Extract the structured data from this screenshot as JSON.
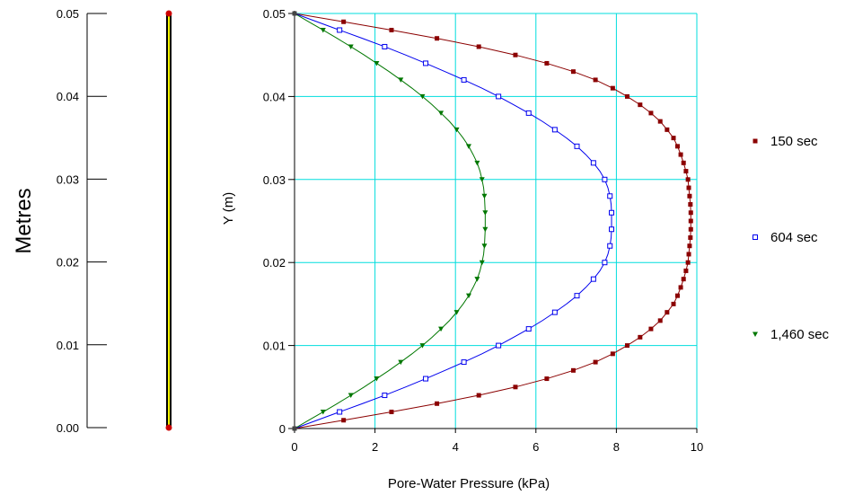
{
  "left_panel": {
    "axis_label": "Metres",
    "ticks": [
      "0.05",
      "0.04",
      "0.03",
      "0.02",
      "0.01",
      "0.00"
    ],
    "tick_values": [
      0.05,
      0.04,
      0.03,
      0.02,
      0.01,
      0.0
    ],
    "column_color": "#FFFF00",
    "column_outline_color": "#000000",
    "endpoint_color": "#CC0000"
  },
  "colors": {
    "grid": "#00DDDD",
    "axis": "#000000"
  },
  "chart_data": {
    "type": "line",
    "xlabel": "Pore-Water Pressure (kPa)",
    "ylabel": "Y (m)",
    "xlim": [
      0,
      10
    ],
    "ylim": [
      0,
      0.05
    ],
    "x_ticks": [
      "0",
      "2",
      "4",
      "6",
      "8",
      "10"
    ],
    "x_tick_values": [
      0,
      2,
      4,
      6,
      8,
      10
    ],
    "y_ticks": [
      "0",
      "0.01",
      "0.02",
      "0.03",
      "0.04",
      "0.05"
    ],
    "y_tick_values": [
      0,
      0.01,
      0.02,
      0.03,
      0.04,
      0.05
    ],
    "grid": true,
    "legend_position": "right",
    "y": [
      0,
      0.001,
      0.002,
      0.003,
      0.004,
      0.005,
      0.006,
      0.007,
      0.008,
      0.009,
      0.01,
      0.011,
      0.012,
      0.013,
      0.014,
      0.015,
      0.016,
      0.017,
      0.018,
      0.019,
      0.02,
      0.021,
      0.022,
      0.023,
      0.024,
      0.025,
      0.026,
      0.027,
      0.028,
      0.029,
      0.03,
      0.031,
      0.032,
      0.033,
      0.034,
      0.035,
      0.036,
      0.037,
      0.038,
      0.039,
      0.04,
      0.041,
      0.042,
      0.043,
      0.044,
      0.045,
      0.046,
      0.047,
      0.048,
      0.049,
      0.05
    ],
    "series": [
      {
        "name": "150 sec",
        "color": "#8B0000",
        "marker": "filled-square",
        "values": [
          0,
          1.22,
          2.41,
          3.54,
          4.58,
          5.49,
          6.27,
          6.93,
          7.48,
          7.91,
          8.27,
          8.59,
          8.86,
          9.09,
          9.26,
          9.42,
          9.52,
          9.6,
          9.67,
          9.73,
          9.78,
          9.8,
          9.82,
          9.84,
          9.85,
          9.85,
          9.85,
          9.84,
          9.82,
          9.8,
          9.78,
          9.73,
          9.67,
          9.6,
          9.52,
          9.42,
          9.26,
          9.09,
          8.86,
          8.59,
          8.27,
          7.91,
          7.48,
          6.93,
          6.27,
          5.49,
          4.58,
          3.54,
          2.41,
          1.22,
          0
        ]
      },
      {
        "name": "604 sec",
        "color": "#0000EE",
        "marker": "open-square",
        "values": [
          0,
          0.56,
          1.12,
          1.69,
          2.24,
          2.76,
          3.26,
          3.74,
          4.21,
          4.66,
          5.07,
          5.45,
          5.82,
          6.16,
          6.47,
          6.76,
          7.02,
          7.24,
          7.43,
          7.59,
          7.71,
          7.79,
          7.84,
          7.87,
          7.88,
          7.88,
          7.88,
          7.87,
          7.84,
          7.79,
          7.71,
          7.59,
          7.43,
          7.24,
          7.02,
          6.76,
          6.47,
          6.16,
          5.82,
          5.45,
          5.07,
          4.66,
          4.21,
          3.74,
          3.26,
          2.76,
          2.24,
          1.69,
          1.12,
          0.56,
          0
        ]
      },
      {
        "name": "1,460 sec",
        "color": "#007700",
        "marker": "down-triangle",
        "values": [
          0,
          0.35,
          0.71,
          1.06,
          1.4,
          1.73,
          2.04,
          2.35,
          2.64,
          2.92,
          3.18,
          3.42,
          3.64,
          3.85,
          4.03,
          4.19,
          4.33,
          4.44,
          4.54,
          4.61,
          4.66,
          4.7,
          4.72,
          4.73,
          4.74,
          4.74,
          4.74,
          4.73,
          4.72,
          4.7,
          4.66,
          4.61,
          4.54,
          4.44,
          4.33,
          4.19,
          4.03,
          3.85,
          3.64,
          3.42,
          3.18,
          2.92,
          2.64,
          2.35,
          2.04,
          1.73,
          1.4,
          1.06,
          0.71,
          0.35,
          0
        ]
      }
    ]
  }
}
